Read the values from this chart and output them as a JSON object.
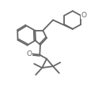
{
  "bg_color": "#ffffff",
  "line_color": "#666666",
  "line_width": 1.3,
  "figsize": [
    1.34,
    1.27
  ],
  "dpi": 100,
  "xlim": [
    0.0,
    1.0
  ],
  "ylim": [
    0.0,
    1.0
  ]
}
